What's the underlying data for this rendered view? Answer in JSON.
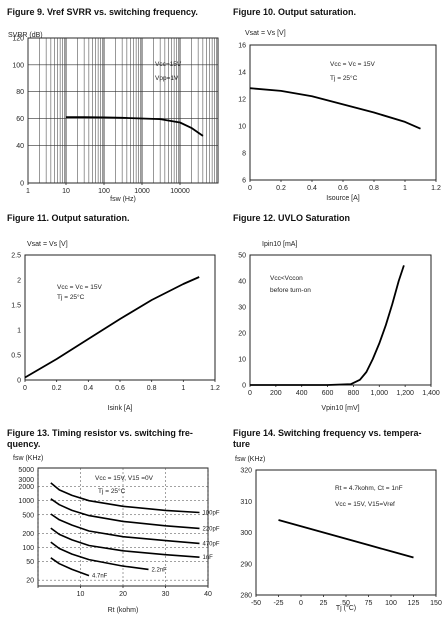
{
  "titles": {
    "fig9": "Figure 9. Vref SVRR vs. switching frequency.",
    "fig10": "Figure 10. Output saturation.",
    "fig11": "Figure 11. Output saturation.",
    "fig12": "Figure 12. UVLO Saturation",
    "fig13": "Figure 13. Timing resistor vs. switching fre-\nquency.",
    "fig14": "Figure 14. Switching frequency vs. tempera-\nture"
  },
  "chart_data": [
    {
      "id": "fig9",
      "type": "line",
      "title": "Figure 9. Vref SVRR vs. switching frequency.",
      "ylabel": "SVRR (dB)",
      "xlabel": "fsw (Hz)",
      "xscale": "log",
      "xlim": [
        1,
        100000
      ],
      "ylim": [
        0,
        120
      ],
      "xticks": [
        1,
        10,
        100,
        1000,
        10000
      ],
      "xticklabels": [
        "1",
        "10",
        "100",
        "1000",
        "10000"
      ],
      "yticks": [
        0,
        40,
        60,
        80,
        100,
        120
      ],
      "yticklabels": [
        "0",
        "40",
        "60",
        "80",
        "100",
        "120"
      ],
      "grid": true,
      "annotations": [
        "Vcc=15V",
        "Vpp=1V"
      ],
      "series": [
        {
          "x": [
            10,
            30,
            100,
            300,
            1000,
            3000,
            10000,
            20000,
            40000
          ],
          "y": [
            61,
            61,
            60.8,
            60.5,
            60,
            59.5,
            57,
            53,
            47
          ]
        }
      ]
    },
    {
      "id": "fig10",
      "type": "line",
      "title": "Figure 10. Output saturation.",
      "ylabel": "Vsat = Vs [V]",
      "xlabel": "Isource [A]",
      "xlim": [
        0,
        1.2
      ],
      "ylim": [
        6,
        16
      ],
      "xticks": [
        0,
        0.2,
        0.4,
        0.6,
        0.8,
        1,
        1.2
      ],
      "xticklabels": [
        "0",
        "0.2",
        "0.4",
        "0.6",
        "0.8",
        "1",
        "1.2"
      ],
      "yticks": [
        6,
        8,
        10,
        12,
        14,
        16
      ],
      "yticklabels": [
        "6",
        "8",
        "10",
        "12",
        "14",
        "16"
      ],
      "grid": false,
      "annotations": [
        "Vcc = Vc = 15V",
        "Tj = 25°C"
      ],
      "series": [
        {
          "x": [
            0,
            0.2,
            0.4,
            0.6,
            0.8,
            1.0,
            1.1
          ],
          "y": [
            12.8,
            12.6,
            12.2,
            11.6,
            11.0,
            10.3,
            9.8
          ]
        }
      ]
    },
    {
      "id": "fig11",
      "type": "line",
      "title": "Figure 11. Output saturation.",
      "ylabel": "Vsat = Vs [V]",
      "xlabel": "Isink [A]",
      "xlim": [
        0,
        1.2
      ],
      "ylim": [
        0,
        2.5
      ],
      "xticks": [
        0,
        0.2,
        0.4,
        0.6,
        0.8,
        1,
        1.2
      ],
      "xticklabels": [
        "0",
        "0.2",
        "0.4",
        "0.6",
        "0.8",
        "1",
        "1.2"
      ],
      "yticks": [
        0,
        0.5,
        1,
        1.5,
        2,
        2.5
      ],
      "yticklabels": [
        "0",
        "0.5",
        "1",
        "1.5",
        "2",
        "2.5"
      ],
      "grid": false,
      "annotations": [
        "Vcc = Vc = 15V",
        "Tj = 25°C"
      ],
      "series": [
        {
          "x": [
            0,
            0.2,
            0.4,
            0.6,
            0.8,
            1.0,
            1.1
          ],
          "y": [
            0.05,
            0.42,
            0.82,
            1.22,
            1.6,
            1.92,
            2.06
          ]
        }
      ]
    },
    {
      "id": "fig12",
      "type": "line",
      "title": "Figure 12. UVLO Saturation",
      "ylabel": "Ipin10 [mA]",
      "xlabel": "Vpin10 [mV]",
      "xlim": [
        0,
        1400
      ],
      "ylim": [
        0,
        50
      ],
      "xticks": [
        0,
        200,
        400,
        600,
        800,
        1000,
        1200,
        1400
      ],
      "xticklabels": [
        "0",
        "200",
        "400",
        "600",
        "800",
        "1,000",
        "1,200",
        "1,400"
      ],
      "yticks": [
        0,
        10,
        20,
        30,
        40,
        50
      ],
      "yticklabels": [
        "0",
        "10",
        "20",
        "30",
        "40",
        "50"
      ],
      "grid": false,
      "annotations": [
        "Vcc<Vccon",
        "before turn-on"
      ],
      "series": [
        {
          "x": [
            0,
            600,
            780,
            850,
            900,
            950,
            1000,
            1050,
            1100,
            1150,
            1190
          ],
          "y": [
            0,
            0,
            0.3,
            2,
            5,
            10,
            16,
            23,
            31,
            40,
            46
          ]
        }
      ]
    },
    {
      "id": "fig13",
      "type": "line",
      "title": "Figure 13. Timing resistor vs. switching frequency.",
      "ylabel": "fsw (KHz)",
      "xlabel": "Rt (kohm)",
      "xlim": [
        0,
        40
      ],
      "yscale": "log",
      "xticks": [
        0,
        10,
        20,
        30,
        40
      ],
      "xticklabels": [
        "",
        "10",
        "20",
        "30",
        "40"
      ],
      "yticks": [
        20,
        50,
        100,
        200,
        500,
        1000,
        2000
      ],
      "yticklabels": [
        "20",
        "50",
        "100",
        "200",
        "500",
        "1000",
        "2000"
      ],
      "ytoplabels": [
        "5000",
        "3000"
      ],
      "grid": true,
      "annotations": [
        "Vcc = 15V, V15 =0V",
        "Tj = 25°C"
      ],
      "series": [
        {
          "name": "100pF",
          "x": [
            3,
            5,
            8,
            12,
            20,
            30,
            38
          ],
          "y": [
            2400,
            1700,
            1300,
            1000,
            760,
            620,
            560
          ]
        },
        {
          "name": "220pF",
          "x": [
            3,
            5,
            8,
            12,
            20,
            30,
            38
          ],
          "y": [
            1100,
            820,
            620,
            480,
            360,
            290,
            255
          ]
        },
        {
          "name": "470pF",
          "x": [
            3,
            5,
            8,
            12,
            20,
            30,
            38
          ],
          "y": [
            520,
            390,
            300,
            225,
            170,
            140,
            122
          ]
        },
        {
          "name": "1nF",
          "x": [
            3,
            5,
            8,
            12,
            20,
            30,
            38
          ],
          "y": [
            260,
            190,
            145,
            110,
            85,
            70,
            62
          ]
        },
        {
          "name": "2.2nF",
          "x": [
            3,
            5,
            8,
            12,
            20,
            26
          ],
          "y": [
            130,
            95,
            72,
            55,
            40,
            34
          ]
        },
        {
          "name": "4.7nF",
          "x": [
            3,
            5,
            8,
            12
          ],
          "y": [
            60,
            45,
            34,
            25
          ]
        }
      ]
    },
    {
      "id": "fig14",
      "type": "line",
      "title": "Figure 14. Switching frequency vs. temperature",
      "ylabel": "fsw (KHz)",
      "xlabel": "Tj (°C)",
      "xlim": [
        -50,
        150
      ],
      "ylim": [
        280,
        320
      ],
      "xticks": [
        -50,
        -25,
        0,
        25,
        50,
        75,
        100,
        125,
        150
      ],
      "xticklabels": [
        "-50",
        "-25",
        "0",
        "25",
        "50",
        "75",
        "100",
        "125",
        "150"
      ],
      "yticks": [
        280,
        290,
        300,
        310,
        320
      ],
      "yticklabels": [
        "280",
        "290",
        "300",
        "310",
        "320"
      ],
      "grid": false,
      "annotations": [
        "Rt = 4.7kohm, Ct = 1nF",
        "Vcc = 15V, V15=Vref"
      ],
      "series": [
        {
          "x": [
            -25,
            0,
            25,
            50,
            75,
            100,
            125
          ],
          "y": [
            304,
            302,
            300,
            298,
            296,
            294,
            292
          ]
        }
      ]
    }
  ]
}
